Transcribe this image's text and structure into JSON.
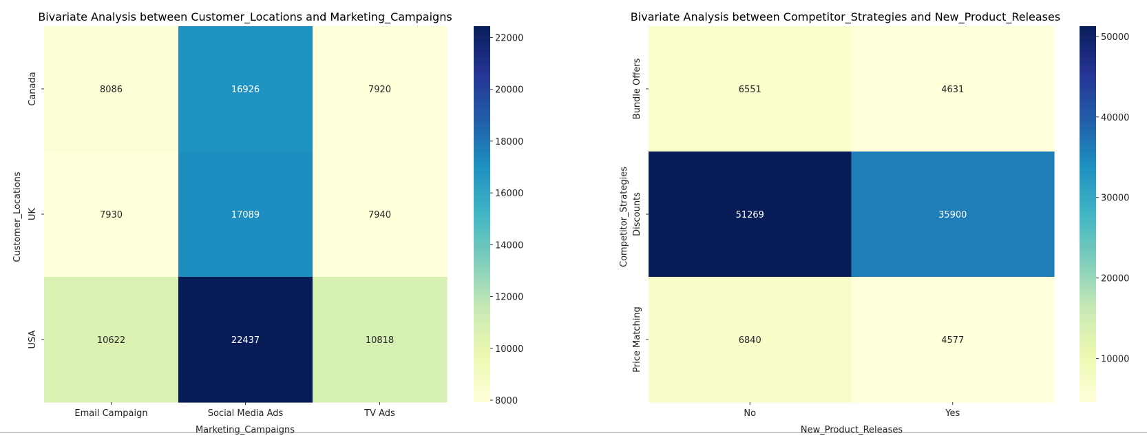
{
  "chart_data": [
    {
      "type": "heatmap",
      "title": "Bivariate Analysis between Customer_Locations and Marketing_Campaigns",
      "xlabel": "Marketing_Campaigns",
      "ylabel": "Customer_Locations",
      "x_categories": [
        "Email Campaign",
        "Social Media Ads",
        "TV Ads"
      ],
      "y_categories": [
        "Canada",
        "UK",
        "USA"
      ],
      "values": [
        [
          8086,
          16926,
          7920
        ],
        [
          7930,
          17089,
          7940
        ],
        [
          10622,
          22437,
          10818
        ]
      ],
      "colormap": "YlGnBu",
      "colorbar_range": [
        7920,
        22437
      ],
      "colorbar_ticks": [
        8000,
        10000,
        12000,
        14000,
        16000,
        18000,
        20000,
        22000
      ],
      "annotated": true
    },
    {
      "type": "heatmap",
      "title": "Bivariate Analysis between Competitor_Strategies and New_Product_Releases",
      "xlabel": "New_Product_Releases",
      "ylabel": "Competitor_Strategies",
      "x_categories": [
        "No",
        "Yes"
      ],
      "y_categories": [
        "Bundle Offers",
        "Discounts",
        "Price Matching"
      ],
      "values": [
        [
          6551,
          4631
        ],
        [
          51269,
          35900
        ],
        [
          6840,
          4577
        ]
      ],
      "colormap": "YlGnBu",
      "colorbar_range": [
        4577,
        51269
      ],
      "colorbar_ticks": [
        10000,
        20000,
        30000,
        40000,
        50000
      ],
      "annotated": true
    }
  ]
}
